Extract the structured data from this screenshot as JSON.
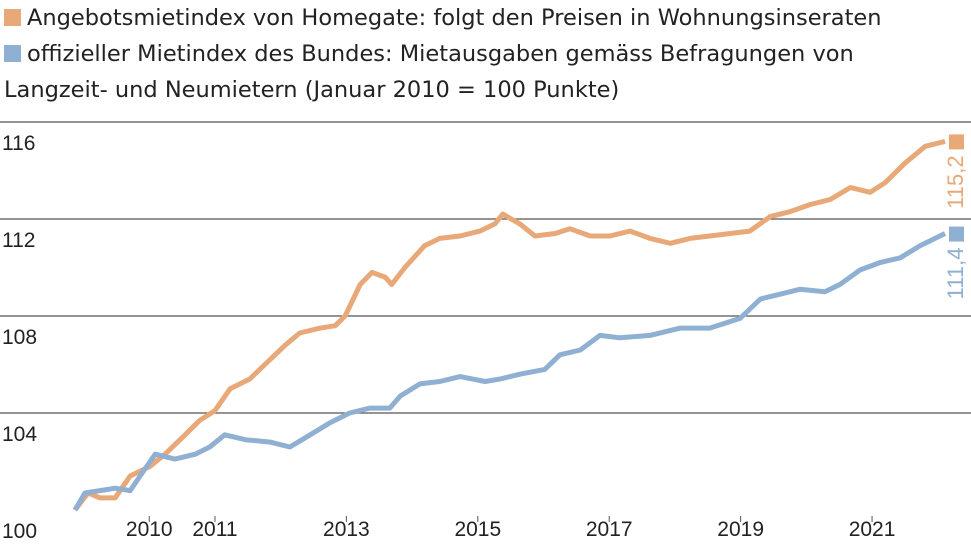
{
  "chart_data": {
    "type": "line",
    "xlim": [
      2008.87,
      2022.11
    ],
    "xticks": [
      2010,
      2011,
      2013,
      2015,
      2017,
      2019,
      2021
    ],
    "ylim": [
      100,
      116
    ],
    "yticks": [
      100,
      104,
      108,
      112,
      116
    ],
    "grid": true,
    "series": [
      {
        "name": "Angebotsmietindex von Homegate: folgt den Preisen in Wohnungsinseraten",
        "color": "#e8a877",
        "x": [
          2008.87,
          2009.07,
          2009.25,
          2009.48,
          2009.71,
          2010.01,
          2010.24,
          2010.47,
          2010.77,
          2011.0,
          2011.23,
          2011.53,
          2011.76,
          2012.07,
          2012.29,
          2012.6,
          2012.83,
          2012.98,
          2013.21,
          2013.39,
          2013.59,
          2013.69,
          2013.89,
          2014.19,
          2014.42,
          2014.73,
          2015.03,
          2015.26,
          2015.38,
          2015.64,
          2015.87,
          2016.18,
          2016.4,
          2016.71,
          2017.01,
          2017.32,
          2017.62,
          2017.93,
          2018.23,
          2018.53,
          2018.84,
          2019.14,
          2019.45,
          2019.75,
          2020.06,
          2020.36,
          2020.67,
          2020.97,
          2021.2,
          2021.5,
          2021.81,
          2022.11
        ],
        "values": [
          100,
          100.7,
          100.5,
          100.5,
          101.4,
          101.8,
          102.3,
          102.9,
          103.7,
          104.1,
          105.0,
          105.4,
          106.0,
          106.8,
          107.3,
          107.5,
          107.6,
          108.0,
          109.3,
          109.8,
          109.6,
          109.3,
          110.0,
          110.9,
          111.2,
          111.3,
          111.5,
          111.8,
          112.2,
          111.8,
          111.3,
          111.4,
          111.6,
          111.3,
          111.3,
          111.5,
          111.2,
          111.0,
          111.2,
          111.3,
          111.4,
          111.5,
          112.1,
          112.3,
          112.6,
          112.8,
          113.3,
          113.1,
          113.5,
          114.3,
          115.0,
          115.2
        ],
        "value_labels": [
          null,
          null,
          null,
          null,
          null,
          null,
          null,
          null,
          null,
          null,
          null,
          null,
          null,
          null,
          null,
          null,
          null,
          null,
          null,
          null,
          null,
          null,
          null,
          null,
          null,
          null,
          null,
          null,
          null,
          null,
          null,
          null,
          null,
          null,
          null,
          null,
          null,
          null,
          null,
          null,
          null,
          null,
          null,
          null,
          null,
          null,
          null,
          null,
          null,
          null,
          null,
          "115,2"
        ]
      },
      {
        "name": "offizieller Mietindex des Bundes: Mietausgaben gemäss Befragungen von Langzeit- und Neumietern (Januar 2010 = 100 Punkte)",
        "color": "#8fb0d2",
        "x": [
          2008.87,
          2009.02,
          2009.25,
          2009.48,
          2009.71,
          2009.86,
          2010.09,
          2010.39,
          2010.7,
          2010.92,
          2011.15,
          2011.46,
          2011.84,
          2012.14,
          2012.45,
          2012.75,
          2013.05,
          2013.36,
          2013.66,
          2013.82,
          2014.12,
          2014.42,
          2014.73,
          2015.11,
          2015.34,
          2015.64,
          2016.02,
          2016.25,
          2016.56,
          2016.86,
          2017.16,
          2017.62,
          2018.08,
          2018.53,
          2018.99,
          2019.3,
          2019.6,
          2019.9,
          2020.28,
          2020.51,
          2020.82,
          2021.12,
          2021.43,
          2021.73,
          2022.11
        ],
        "values": [
          100,
          100.7,
          100.8,
          100.9,
          100.8,
          101.4,
          102.3,
          102.1,
          102.3,
          102.6,
          103.1,
          102.9,
          102.8,
          102.6,
          103.1,
          103.6,
          104.0,
          104.2,
          104.2,
          104.7,
          105.2,
          105.3,
          105.5,
          105.3,
          105.4,
          105.6,
          105.8,
          106.4,
          106.6,
          107.2,
          107.1,
          107.2,
          107.5,
          107.5,
          107.9,
          108.7,
          108.9,
          109.1,
          109.0,
          109.3,
          109.9,
          110.2,
          110.4,
          110.9,
          111.4
        ],
        "value_labels": [
          null,
          null,
          null,
          null,
          null,
          null,
          null,
          null,
          null,
          null,
          null,
          null,
          null,
          null,
          null,
          null,
          null,
          null,
          null,
          null,
          null,
          null,
          null,
          null,
          null,
          null,
          null,
          null,
          null,
          null,
          null,
          null,
          null,
          null,
          null,
          null,
          null,
          null,
          null,
          null,
          null,
          null,
          null,
          null,
          "111,4"
        ]
      }
    ]
  }
}
